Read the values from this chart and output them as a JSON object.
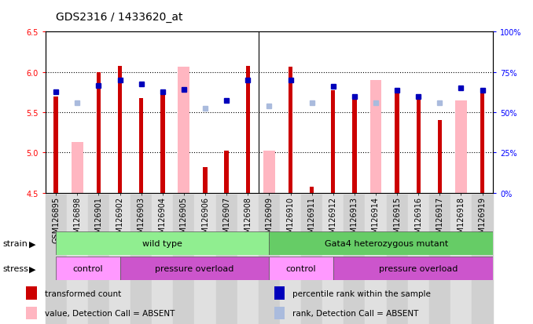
{
  "title": "GDS2316 / 1433620_at",
  "samples": [
    "GSM126895",
    "GSM126898",
    "GSM126901",
    "GSM126902",
    "GSM126903",
    "GSM126904",
    "GSM126905",
    "GSM126906",
    "GSM126907",
    "GSM126908",
    "GSM126909",
    "GSM126910",
    "GSM126911",
    "GSM126912",
    "GSM126913",
    "GSM126914",
    "GSM126915",
    "GSM126916",
    "GSM126917",
    "GSM126918",
    "GSM126919"
  ],
  "red_values": [
    5.7,
    null,
    6.0,
    6.08,
    5.68,
    5.72,
    null,
    4.82,
    5.02,
    6.08,
    null,
    6.07,
    4.58,
    5.77,
    5.7,
    null,
    5.75,
    5.7,
    5.4,
    null,
    5.77
  ],
  "pink_values": [
    null,
    5.13,
    null,
    null,
    null,
    null,
    6.07,
    null,
    null,
    null,
    5.02,
    null,
    null,
    null,
    null,
    5.9,
    null,
    null,
    null,
    5.65,
    null
  ],
  "blue_values": [
    5.75,
    null,
    5.83,
    5.9,
    5.85,
    5.75,
    5.78,
    null,
    5.65,
    5.9,
    null,
    5.9,
    null,
    5.82,
    5.7,
    null,
    5.77,
    5.7,
    null,
    5.8,
    5.77
  ],
  "lightblue_values": [
    null,
    5.62,
    null,
    null,
    null,
    null,
    null,
    5.55,
    null,
    null,
    5.58,
    null,
    5.62,
    null,
    null,
    5.62,
    null,
    null,
    5.62,
    null,
    null
  ],
  "ylim": [
    4.5,
    6.5
  ],
  "y2lim": [
    0,
    100
  ],
  "yticks": [
    4.5,
    5.0,
    5.5,
    6.0,
    6.5
  ],
  "y2ticks": [
    0,
    25,
    50,
    75,
    100
  ],
  "y2ticklabels": [
    "0%",
    "25%",
    "50%",
    "75%",
    "100%"
  ],
  "dotted_lines": [
    5.0,
    5.5,
    6.0
  ],
  "red_color": "#CC0000",
  "pink_color": "#FFB6C1",
  "blue_color": "#0000BB",
  "lightblue_color": "#AABBDD",
  "base": 4.5,
  "title_fontsize": 10,
  "tick_fontsize": 7,
  "strain_groups": [
    {
      "label": "wild type",
      "start": 0,
      "end": 10,
      "color": "#90EE90"
    },
    {
      "label": "Gata4 heterozygous mutant",
      "start": 10,
      "end": 21,
      "color": "#66CC66"
    }
  ],
  "stress_groups": [
    {
      "label": "control",
      "start": 0,
      "end": 3,
      "color": "#FF99FF"
    },
    {
      "label": "pressure overload",
      "start": 3,
      "end": 10,
      "color": "#CC55CC"
    },
    {
      "label": "control",
      "start": 10,
      "end": 13,
      "color": "#FF99FF"
    },
    {
      "label": "pressure overload",
      "start": 13,
      "end": 21,
      "color": "#CC55CC"
    }
  ],
  "legend_labels": [
    "transformed count",
    "percentile rank within the sample",
    "value, Detection Call = ABSENT",
    "rank, Detection Call = ABSENT"
  ],
  "legend_colors": [
    "#CC0000",
    "#0000BB",
    "#FFB6C1",
    "#AABBDD"
  ]
}
